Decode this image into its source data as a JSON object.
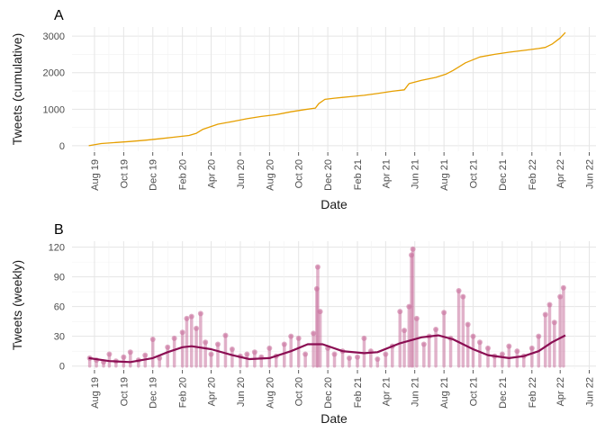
{
  "chart_data": [
    {
      "type": "line",
      "panel_label": "A",
      "xlabel": "Date",
      "ylabel": "Tweets (cumulative)",
      "x_type": "date",
      "xlim": [
        "2019-06-15",
        "2022-06-15"
      ],
      "ylim": [
        -150,
        3250
      ],
      "x_ticks": [
        {
          "date": "2019-08-01",
          "label": "Aug 19"
        },
        {
          "date": "2019-10-01",
          "label": "Oct 19"
        },
        {
          "date": "2019-12-01",
          "label": "Dec 19"
        },
        {
          "date": "2020-02-01",
          "label": "Feb 20"
        },
        {
          "date": "2020-04-01",
          "label": "Apr 20"
        },
        {
          "date": "2020-06-01",
          "label": "Jun 20"
        },
        {
          "date": "2020-08-01",
          "label": "Aug 20"
        },
        {
          "date": "2020-10-01",
          "label": "Oct 20"
        },
        {
          "date": "2020-12-01",
          "label": "Dec 20"
        },
        {
          "date": "2021-02-01",
          "label": "Feb 21"
        },
        {
          "date": "2021-04-01",
          "label": "Apr 21"
        },
        {
          "date": "2021-06-01",
          "label": "Jun 21"
        },
        {
          "date": "2021-08-01",
          "label": "Aug 21"
        },
        {
          "date": "2021-10-01",
          "label": "Oct 21"
        },
        {
          "date": "2021-12-01",
          "label": "Dec 21"
        },
        {
          "date": "2022-02-01",
          "label": "Feb 22"
        },
        {
          "date": "2022-04-01",
          "label": "Apr 22"
        },
        {
          "date": "2022-06-01",
          "label": "Jun 22"
        }
      ],
      "y_ticks": [
        0,
        1000,
        2000,
        3000
      ],
      "grid": true,
      "color": "#e69f00",
      "x": [
        "2019-07-20",
        "2019-08-15",
        "2019-09-15",
        "2019-10-15",
        "2019-11-15",
        "2019-12-15",
        "2020-01-15",
        "2020-02-15",
        "2020-03-01",
        "2020-03-15",
        "2020-04-15",
        "2020-05-15",
        "2020-06-15",
        "2020-07-15",
        "2020-08-15",
        "2020-09-15",
        "2020-10-15",
        "2020-11-05",
        "2020-11-12",
        "2020-11-25",
        "2020-12-15",
        "2021-01-15",
        "2021-02-15",
        "2021-03-15",
        "2021-04-15",
        "2021-05-10",
        "2021-05-20",
        "2021-06-15",
        "2021-07-15",
        "2021-08-05",
        "2021-08-20",
        "2021-09-15",
        "2021-10-15",
        "2021-11-15",
        "2021-12-15",
        "2022-01-15",
        "2022-02-15",
        "2022-03-01",
        "2022-03-15",
        "2022-04-01",
        "2022-04-12"
      ],
      "values": [
        0,
        60,
        90,
        115,
        150,
        190,
        235,
        280,
        340,
        450,
        590,
        660,
        740,
        800,
        850,
        930,
        990,
        1030,
        1150,
        1270,
        1300,
        1340,
        1380,
        1430,
        1490,
        1530,
        1700,
        1790,
        1870,
        1960,
        2060,
        2270,
        2430,
        2500,
        2560,
        2610,
        2660,
        2690,
        2780,
        2950,
        3100
      ]
    },
    {
      "type": "scatter",
      "panel_label": "B",
      "xlabel": "Date",
      "ylabel": "Tweets (weekly)",
      "x_type": "date",
      "xlim": [
        "2019-06-15",
        "2022-06-15"
      ],
      "ylim": [
        -3,
        126
      ],
      "x_ticks": [
        {
          "date": "2019-08-01",
          "label": "Aug 19"
        },
        {
          "date": "2019-10-01",
          "label": "Oct 19"
        },
        {
          "date": "2019-12-01",
          "label": "Dec 19"
        },
        {
          "date": "2020-02-01",
          "label": "Feb 20"
        },
        {
          "date": "2020-04-01",
          "label": "Apr 20"
        },
        {
          "date": "2020-06-01",
          "label": "Jun 20"
        },
        {
          "date": "2020-08-01",
          "label": "Aug 20"
        },
        {
          "date": "2020-10-01",
          "label": "Oct 20"
        },
        {
          "date": "2020-12-01",
          "label": "Dec 20"
        },
        {
          "date": "2021-02-01",
          "label": "Feb 21"
        },
        {
          "date": "2021-04-01",
          "label": "Apr 21"
        },
        {
          "date": "2021-06-01",
          "label": "Jun 21"
        },
        {
          "date": "2021-08-01",
          "label": "Aug 21"
        },
        {
          "date": "2021-10-01",
          "label": "Oct 21"
        },
        {
          "date": "2021-12-01",
          "label": "Dec 21"
        },
        {
          "date": "2022-02-01",
          "label": "Feb 22"
        },
        {
          "date": "2022-04-01",
          "label": "Apr 22"
        },
        {
          "date": "2022-06-01",
          "label": "Jun 22"
        }
      ],
      "y_ticks": [
        0,
        30,
        60,
        90,
        120
      ],
      "grid": true,
      "point_color": "#c9739f",
      "points": [
        [
          "2019-07-22",
          8
        ],
        [
          "2019-08-05",
          6
        ],
        [
          "2019-08-20",
          4
        ],
        [
          "2019-09-01",
          12
        ],
        [
          "2019-09-15",
          5
        ],
        [
          "2019-10-01",
          9
        ],
        [
          "2019-10-15",
          14
        ],
        [
          "2019-11-01",
          6
        ],
        [
          "2019-11-15",
          11
        ],
        [
          "2019-12-01",
          27
        ],
        [
          "2019-12-15",
          8
        ],
        [
          "2020-01-01",
          19
        ],
        [
          "2020-01-15",
          28
        ],
        [
          "2020-02-01",
          34
        ],
        [
          "2020-02-10",
          48
        ],
        [
          "2020-02-20",
          50
        ],
        [
          "2020-03-01",
          38
        ],
        [
          "2020-03-10",
          53
        ],
        [
          "2020-03-20",
          24
        ],
        [
          "2020-04-01",
          12
        ],
        [
          "2020-04-15",
          22
        ],
        [
          "2020-05-01",
          31
        ],
        [
          "2020-05-15",
          17
        ],
        [
          "2020-06-01",
          10
        ],
        [
          "2020-06-15",
          12
        ],
        [
          "2020-07-01",
          14
        ],
        [
          "2020-07-15",
          9
        ],
        [
          "2020-08-01",
          18
        ],
        [
          "2020-08-15",
          10
        ],
        [
          "2020-09-01",
          22
        ],
        [
          "2020-09-15",
          30
        ],
        [
          "2020-10-01",
          28
        ],
        [
          "2020-10-15",
          12
        ],
        [
          "2020-11-01",
          33
        ],
        [
          "2020-11-08",
          78
        ],
        [
          "2020-11-10",
          100
        ],
        [
          "2020-11-15",
          55
        ],
        [
          "2020-12-01",
          18
        ],
        [
          "2020-12-15",
          12
        ],
        [
          "2021-01-01",
          15
        ],
        [
          "2021-01-15",
          8
        ],
        [
          "2021-02-01",
          9
        ],
        [
          "2021-02-15",
          28
        ],
        [
          "2021-03-01",
          15
        ],
        [
          "2021-03-15",
          7
        ],
        [
          "2021-04-01",
          12
        ],
        [
          "2021-04-15",
          20
        ],
        [
          "2021-05-01",
          55
        ],
        [
          "2021-05-10",
          36
        ],
        [
          "2021-05-20",
          60
        ],
        [
          "2021-05-25",
          112
        ],
        [
          "2021-05-28",
          118
        ],
        [
          "2021-06-05",
          48
        ],
        [
          "2021-06-20",
          22
        ],
        [
          "2021-07-01",
          30
        ],
        [
          "2021-07-15",
          37
        ],
        [
          "2021-08-01",
          54
        ],
        [
          "2021-08-15",
          28
        ],
        [
          "2021-09-01",
          76
        ],
        [
          "2021-09-10",
          70
        ],
        [
          "2021-09-20",
          42
        ],
        [
          "2021-10-01",
          30
        ],
        [
          "2021-10-15",
          24
        ],
        [
          "2021-11-01",
          18
        ],
        [
          "2021-11-15",
          10
        ],
        [
          "2021-12-01",
          12
        ],
        [
          "2021-12-15",
          20
        ],
        [
          "2022-01-01",
          15
        ],
        [
          "2022-01-15",
          10
        ],
        [
          "2022-02-01",
          18
        ],
        [
          "2022-02-15",
          30
        ],
        [
          "2022-03-01",
          52
        ],
        [
          "2022-03-10",
          62
        ],
        [
          "2022-03-20",
          44
        ],
        [
          "2022-04-01",
          70
        ],
        [
          "2022-04-08",
          79
        ]
      ],
      "trend_color": "#8b0e53",
      "trend": [
        [
          "2019-07-20",
          8
        ],
        [
          "2019-09-01",
          5
        ],
        [
          "2019-10-15",
          4
        ],
        [
          "2019-12-01",
          8
        ],
        [
          "2020-01-01",
          14
        ],
        [
          "2020-02-01",
          19
        ],
        [
          "2020-02-20",
          20
        ],
        [
          "2020-04-01",
          17
        ],
        [
          "2020-05-15",
          11
        ],
        [
          "2020-06-20",
          7
        ],
        [
          "2020-08-01",
          8
        ],
        [
          "2020-09-15",
          15
        ],
        [
          "2020-10-20",
          22
        ],
        [
          "2020-11-20",
          22
        ],
        [
          "2021-01-01",
          15
        ],
        [
          "2021-02-15",
          13
        ],
        [
          "2021-03-15",
          14
        ],
        [
          "2021-05-01",
          23
        ],
        [
          "2021-06-15",
          29
        ],
        [
          "2021-07-20",
          31
        ],
        [
          "2021-08-20",
          27
        ],
        [
          "2021-10-01",
          17
        ],
        [
          "2021-11-01",
          11
        ],
        [
          "2021-12-15",
          8
        ],
        [
          "2022-01-15",
          10
        ],
        [
          "2022-02-15",
          15
        ],
        [
          "2022-03-15",
          24
        ],
        [
          "2022-04-12",
          31
        ]
      ]
    }
  ]
}
